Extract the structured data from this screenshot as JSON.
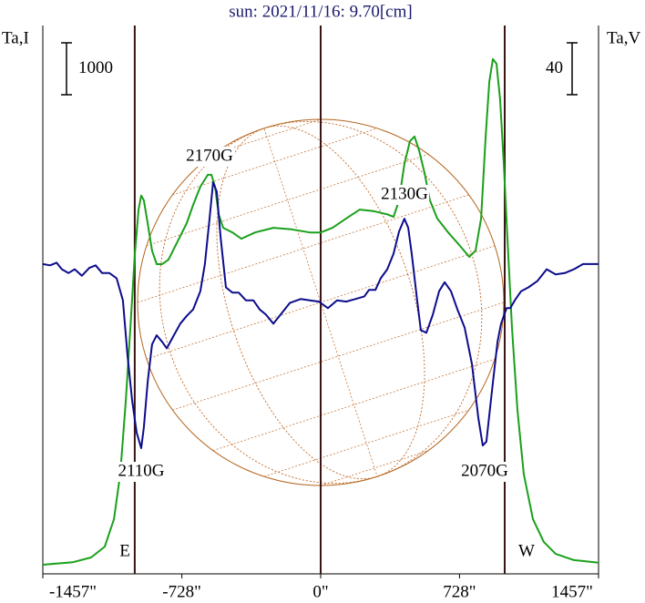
{
  "chart_data": {
    "type": "line",
    "title": "sun: 2021/11/16: 9.70[cm]",
    "y_label": "Ta,I",
    "y2_label": "Ta,V",
    "xlim": [
      -1457,
      1457
    ],
    "xticks": [
      {
        "value": -1457,
        "label": "-1457\""
      },
      {
        "value": -728,
        "label": "-728\""
      },
      {
        "value": 0,
        "label": "0\""
      },
      {
        "value": 728,
        "label": "728\""
      },
      {
        "value": 1457,
        "label": "1457\""
      }
    ],
    "ylim": [
      -175,
      10386
    ],
    "y2lim": [
      -239,
      184
    ],
    "vlines": [
      -975,
      0,
      965
    ],
    "vline_color": "#3a1414",
    "scale_bars": [
      {
        "value": 1000,
        "axis": "y"
      },
      {
        "value": 40,
        "axis": "y2"
      }
    ],
    "annotations": [
      "2170G",
      "2130G",
      "2110G",
      "2070G",
      "E",
      "W"
    ],
    "series": [
      {
        "color": "#1aa01a",
        "axis": "y",
        "x": [
          -1457,
          -1395,
          -1299,
          -1204,
          -1132,
          -1084,
          -1051,
          -1022,
          -998,
          -975,
          -955,
          -941,
          -927,
          -907,
          -884,
          -860,
          -831,
          -798,
          -750,
          -702,
          -669,
          -631,
          -592,
          -573,
          -554,
          -535,
          -511,
          -463,
          -416,
          -344,
          -248,
          -153,
          -57,
          0,
          62,
          134,
          205,
          277,
          349,
          382,
          411,
          439,
          468,
          492,
          516,
          545,
          573,
          611,
          669,
          731,
          779,
          812,
          841,
          865,
          884,
          903,
          922,
          941,
          960,
          979,
          1003,
          1032,
          1065,
          1113,
          1170,
          1232,
          1328,
          1457
        ],
        "values": [
          0,
          20,
          50,
          140,
          350,
          880,
          1750,
          3160,
          4560,
          5960,
          6840,
          7110,
          7020,
          6580,
          6050,
          5790,
          5790,
          5880,
          6230,
          6580,
          6930,
          7280,
          7510,
          7510,
          7280,
          6750,
          6490,
          6400,
          6280,
          6400,
          6490,
          6460,
          6400,
          6400,
          6490,
          6670,
          6840,
          6810,
          6750,
          6700,
          7020,
          7720,
          8160,
          8250,
          7980,
          7540,
          7020,
          6670,
          6400,
          6140,
          5930,
          6050,
          6670,
          8250,
          9300,
          9740,
          9650,
          8950,
          7720,
          6320,
          4560,
          2980,
          1750,
          880,
          440,
          210,
          90,
          40
        ]
      },
      {
        "color": "#0c0c8c",
        "axis": "y2",
        "x": [
          -1457,
          -1419,
          -1385,
          -1357,
          -1323,
          -1290,
          -1252,
          -1213,
          -1180,
          -1146,
          -1108,
          -1070,
          -1037,
          -1013,
          -989,
          -965,
          -941,
          -927,
          -907,
          -884,
          -860,
          -831,
          -807,
          -774,
          -736,
          -702,
          -669,
          -631,
          -607,
          -583,
          -564,
          -545,
          -525,
          -497,
          -463,
          -430,
          -392,
          -353,
          -320,
          -287,
          -248,
          -210,
          -162,
          -105,
          -57,
          -10,
          38,
          86,
          134,
          182,
          229,
          253,
          287,
          315,
          349,
          382,
          411,
          439,
          459,
          478,
          506,
          525,
          554,
          588,
          621,
          650,
          683,
          717,
          755,
          793,
          827,
          850,
          869,
          898,
          927,
          946,
          975,
          994,
          1018,
          1051,
          1089,
          1137,
          1185,
          1232,
          1280,
          1328,
          1376,
          1457
        ],
        "values": [
          0,
          -1,
          1,
          -4,
          -7,
          -4,
          -9,
          -3,
          -1,
          -7,
          -7,
          -11,
          -28,
          -70,
          -105,
          -130,
          -142,
          -126,
          -91,
          -62,
          -55,
          -60,
          -65,
          -56,
          -46,
          -40,
          -35,
          -21,
          0,
          35,
          63,
          56,
          21,
          -18,
          -22,
          -22,
          -28,
          -28,
          -35,
          -39,
          -46,
          -39,
          -30,
          -27,
          -28,
          -29,
          -34,
          -28,
          -29,
          -27,
          -25,
          -20,
          -20,
          -11,
          -4,
          8,
          25,
          35,
          28,
          7,
          -28,
          -51,
          -53,
          -39,
          -21,
          -14,
          -21,
          -35,
          -49,
          -77,
          -119,
          -140,
          -137,
          -98,
          -60,
          -46,
          -34,
          -34,
          -28,
          -21,
          -18,
          -13,
          -4,
          -8,
          -7,
          -4,
          0,
          0
        ]
      }
    ]
  }
}
